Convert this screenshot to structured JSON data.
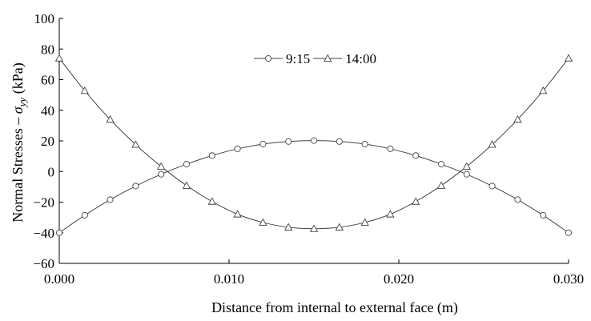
{
  "chart_data": {
    "type": "line",
    "xlabel": "Distance from internal to external face (m)",
    "ylabel": "Normal Stresses – σyy (kPa)",
    "ylabel_main": "Normal Stresses – ",
    "ylabel_symbol": "σ",
    "ylabel_sub": "yy",
    "ylabel_unit": " (kPa)",
    "xlim": [
      0,
      0.03
    ],
    "ylim": [
      -60,
      100
    ],
    "x_ticks": [
      0.0,
      0.01,
      0.02,
      0.03
    ],
    "x_tick_labels": [
      "0.000",
      "0.010",
      "0.020",
      "0.030"
    ],
    "y_ticks": [
      -60,
      -40,
      -20,
      0,
      20,
      40,
      60,
      80,
      100
    ],
    "y_tick_labels": [
      "−60",
      "−40",
      "−20",
      "0",
      "20",
      "40",
      "60",
      "80",
      "100"
    ],
    "grid": false,
    "legend_position": "top-center",
    "x": [
      0.0,
      0.0015,
      0.003,
      0.0045,
      0.006,
      0.0075,
      0.009,
      0.0105,
      0.012,
      0.0135,
      0.015,
      0.0165,
      0.018,
      0.0195,
      0.021,
      0.0225,
      0.024,
      0.0255,
      0.027,
      0.0285,
      0.03
    ],
    "series": [
      {
        "name": "9:15",
        "marker": "circle",
        "values": [
          -40,
          -28.6,
          -18.4,
          -9.5,
          -1.8,
          4.8,
          10.4,
          14.8,
          17.9,
          19.6,
          20.2,
          19.6,
          17.9,
          14.8,
          10.4,
          4.8,
          -1.8,
          -9.5,
          -18.4,
          -28.6,
          -40
        ]
      },
      {
        "name": "14:00",
        "marker": "triangle",
        "values": [
          74,
          52.8,
          34,
          17.6,
          3.3,
          -9.2,
          -19.6,
          -27.9,
          -33.3,
          -36.4,
          -37.4,
          -36.4,
          -33.3,
          -27.9,
          -19.6,
          -9.2,
          3.3,
          17.6,
          34,
          52.8,
          74
        ]
      }
    ]
  }
}
